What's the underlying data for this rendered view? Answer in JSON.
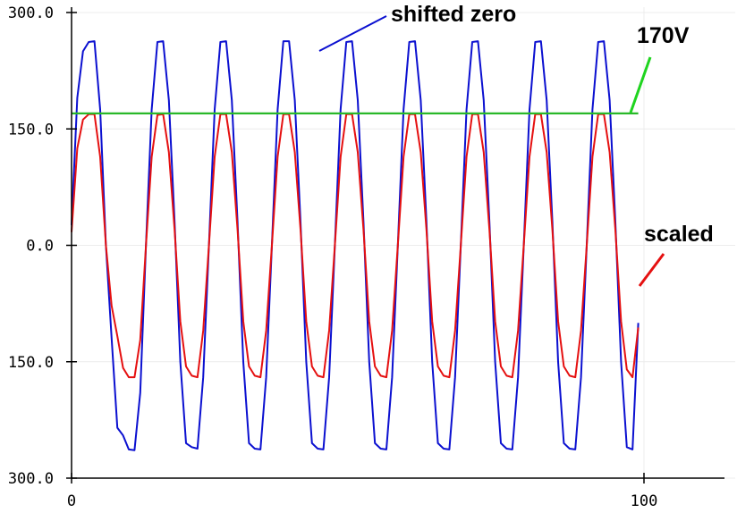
{
  "chart_data": {
    "type": "line",
    "title": "",
    "xlabel": "",
    "ylabel": "",
    "xlim": [
      0,
      100
    ],
    "ylim": [
      -300,
      300
    ],
    "grid": true,
    "x_ticks": [
      {
        "value": 0,
        "label": "0"
      },
      {
        "value": 100,
        "label": "100"
      }
    ],
    "y_ticks": [
      {
        "value": 300,
        "label": "300.0"
      },
      {
        "value": 150,
        "label": "150.0"
      },
      {
        "value": 0,
        "label": "0.0"
      },
      {
        "value": -150,
        "label": "150.0"
      },
      {
        "value": -300,
        "label": "300.0"
      }
    ],
    "x": [
      0,
      1,
      2,
      3,
      4,
      5,
      6,
      7,
      8,
      9,
      10,
      11,
      12,
      13,
      14,
      15,
      16,
      17,
      18,
      19,
      20,
      21,
      22,
      23,
      24,
      25,
      26,
      27,
      28,
      29,
      30,
      31,
      32,
      33,
      34,
      35,
      36,
      37,
      38,
      39,
      40,
      41,
      42,
      43,
      44,
      45,
      46,
      47,
      48,
      49,
      50,
      51,
      52,
      53,
      54,
      55,
      56,
      57,
      58,
      59,
      60,
      61,
      62,
      63,
      64,
      65,
      66,
      67,
      68,
      69,
      70,
      71,
      72,
      73,
      74,
      75,
      76,
      77,
      78,
      79,
      80,
      81,
      82,
      83,
      84,
      85,
      86,
      87,
      88,
      89,
      90,
      91,
      92,
      93,
      94,
      95,
      96,
      97,
      98,
      99
    ],
    "series": [
      {
        "key": "shifted",
        "color": "#0b10d0",
        "values": [
          26,
          190,
          250,
          262,
          263,
          175,
          0,
          -120,
          -235,
          -245,
          -263,
          -264,
          -190,
          0,
          175,
          262,
          263,
          187,
          30,
          -150,
          -255,
          -260,
          -262,
          -170,
          0,
          175,
          262,
          263,
          187,
          30,
          -150,
          -255,
          -262,
          -263,
          -170,
          0,
          175,
          263,
          263,
          187,
          30,
          -150,
          -255,
          -262,
          -263,
          -170,
          0,
          175,
          262,
          263,
          187,
          30,
          -150,
          -255,
          -262,
          -263,
          -170,
          0,
          175,
          262,
          263,
          187,
          30,
          -150,
          -255,
          -262,
          -263,
          -170,
          0,
          175,
          262,
          263,
          187,
          30,
          -150,
          -255,
          -262,
          -263,
          -170,
          0,
          175,
          262,
          263,
          187,
          30,
          -150,
          -255,
          -262,
          -263,
          -170,
          0,
          175,
          262,
          263,
          187,
          30,
          -150,
          -260,
          -263,
          -100
        ]
      },
      {
        "key": "scaled",
        "color": "#e51010",
        "values": [
          17,
          125,
          162,
          169,
          169,
          114,
          0,
          -78,
          -117,
          -158,
          -170,
          -170,
          -122,
          0,
          114,
          168,
          169,
          120,
          20,
          -98,
          -156,
          -168,
          -170,
          -110,
          0,
          114,
          169,
          169,
          120,
          20,
          -98,
          -156,
          -168,
          -170,
          -110,
          0,
          114,
          169,
          169,
          120,
          20,
          -98,
          -156,
          -168,
          -170,
          -110,
          0,
          114,
          169,
          169,
          120,
          20,
          -98,
          -156,
          -168,
          -170,
          -110,
          0,
          114,
          169,
          169,
          120,
          20,
          -98,
          -156,
          -168,
          -170,
          -110,
          0,
          114,
          169,
          169,
          120,
          20,
          -98,
          -156,
          -168,
          -170,
          -110,
          0,
          114,
          169,
          169,
          120,
          20,
          -98,
          -156,
          -168,
          -170,
          -110,
          0,
          114,
          169,
          169,
          120,
          20,
          -98,
          -160,
          -170,
          -106
        ]
      },
      {
        "key": "threshold",
        "color": "#29b829",
        "x": [
          0,
          99
        ],
        "values": [
          170,
          170
        ]
      }
    ],
    "annotations": [
      {
        "text": "shifted zero",
        "color": "#0b10d0"
      },
      {
        "text": "170V",
        "color": "#1fd41f"
      },
      {
        "text": "scaled",
        "color": "#e51010"
      }
    ]
  }
}
